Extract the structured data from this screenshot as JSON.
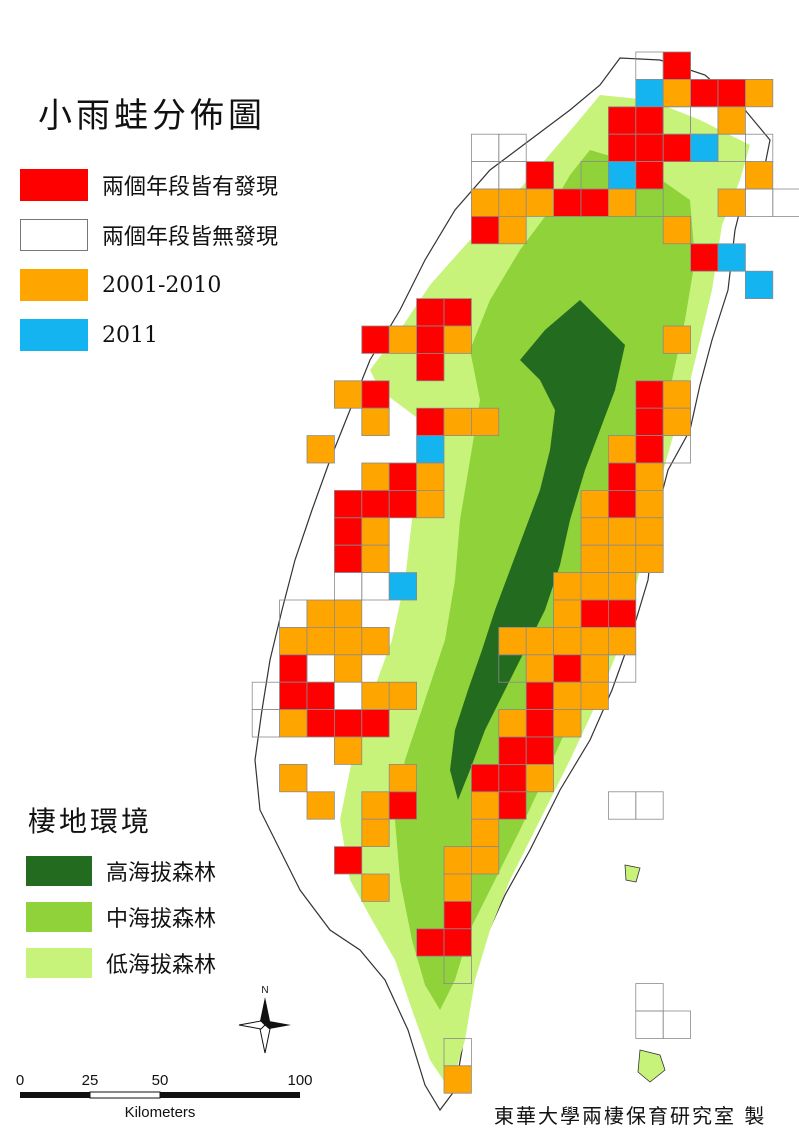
{
  "title": "小雨蛙分佈圖",
  "legend": [
    {
      "label": "兩個年段皆有發現",
      "color": "#ff0000"
    },
    {
      "label": "兩個年段皆無發現",
      "color": "#ffffff"
    },
    {
      "label": "2001-2010",
      "color": "#ffa500"
    },
    {
      "label": "2011",
      "color": "#14b4f0"
    }
  ],
  "habitat_title": "棲地環境",
  "habitat": [
    {
      "label": "高海拔森林",
      "color": "#236b1e"
    },
    {
      "label": "中海拔森林",
      "color": "#8fd23a"
    },
    {
      "label": "低海拔森林",
      "color": "#c8f37a"
    }
  ],
  "scale": {
    "ticks": [
      "0",
      "25",
      "50",
      "100"
    ],
    "unit": "Kilometers"
  },
  "north": "N",
  "credit": "東華大學兩棲保育研究室 製"
}
